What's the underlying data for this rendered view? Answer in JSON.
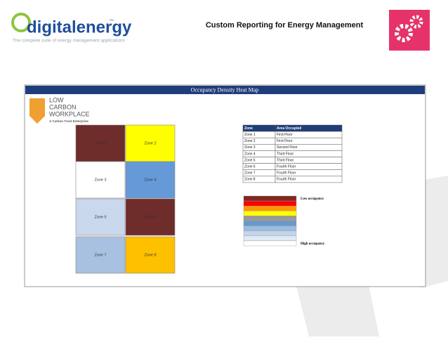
{
  "header": {
    "logo": "digitalenergy",
    "logo_tm": "™",
    "tagline": "The complete suite of energy management applications",
    "title": "Custom Reporting for Energy Management"
  },
  "panel": {
    "title": "Occupancy Density Heat Map",
    "brand": {
      "lines": [
        "LOW",
        "CARBON",
        "WORKPLACE"
      ],
      "sub": "A Carbon Trust Enterprise"
    },
    "zones": [
      {
        "label": "Zone 1",
        "color": "#6e2c2a"
      },
      {
        "label": "Zone 2",
        "color": "#ffff00"
      },
      {
        "label": "Zone 3",
        "color": "#ffffff"
      },
      {
        "label": "Zone 4",
        "color": "#6699d8"
      },
      {
        "label": "Zone 5",
        "color": "#c9d8ec"
      },
      {
        "label": "Zone 6",
        "color": "#6e2c2a"
      },
      {
        "label": "Zone 7",
        "color": "#a9c1e0"
      },
      {
        "label": "Zone 8",
        "color": "#ffc000"
      }
    ],
    "table": {
      "header": [
        "Zone",
        "Area Occupied"
      ],
      "rows": [
        [
          "Zone 1",
          "First Floor"
        ],
        [
          "Zone 2",
          "First Floor"
        ],
        [
          "Zone 3",
          "Second Floor"
        ],
        [
          "Zone 4",
          "Third Floor"
        ],
        [
          "Zone 5",
          "Third Floor"
        ],
        [
          "Zone 6",
          "Fourth Floor"
        ],
        [
          "Zone 7",
          "Fourth Floor"
        ],
        [
          "Zone 8",
          "Fourth Floor"
        ]
      ]
    },
    "legend": {
      "colors": [
        "#7a2b22",
        "#ff0000",
        "#ff9900",
        "#ffff00",
        "#999999",
        "#6699cc",
        "#9dbbe0",
        "#c3d5ec",
        "#e0eaf6",
        "#ffffff"
      ],
      "low": "Low occupancy",
      "high": "High occupancy"
    }
  }
}
